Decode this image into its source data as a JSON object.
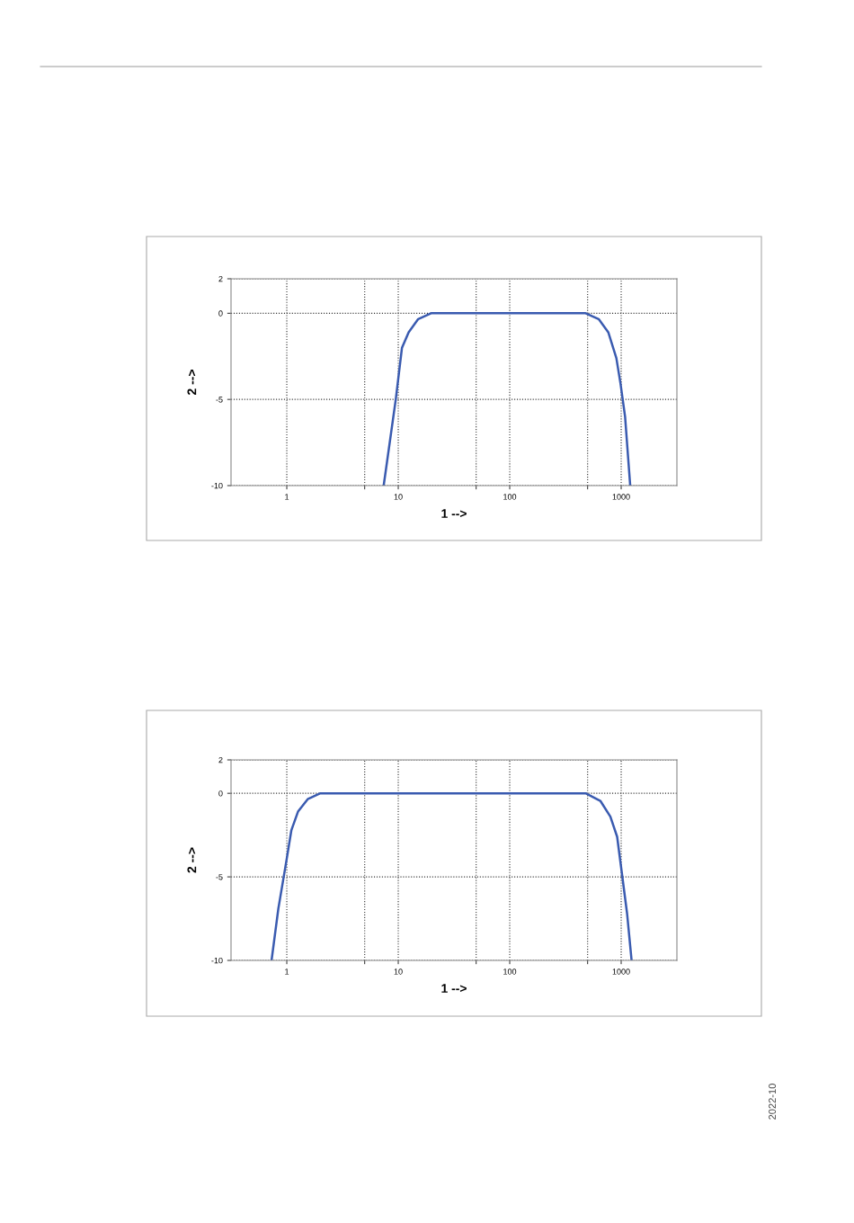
{
  "chart_data": [
    {
      "type": "line",
      "xlabel": "1 -->",
      "ylabel": "2 -->",
      "log": "x",
      "grid": true,
      "line_style": "solid",
      "marker": "none",
      "xlim": [
        0.316,
        3162
      ],
      "ylim": [
        -10,
        2
      ],
      "xticks": [
        1,
        {
          "value": 5,
          "label": null
        },
        10,
        {
          "value": 50,
          "label": null
        },
        100,
        {
          "value": 500,
          "label": null
        },
        1000
      ],
      "yticks": [
        -10,
        -5,
        0,
        2
      ],
      "series": [
        {
          "color": "#3a5bb0",
          "x": [
            7.4,
            9.5,
            10.8,
            12.4,
            15.1,
            19.7,
            100,
            480,
            628,
            766,
            905,
            987,
            1084,
            1205
          ],
          "values": [
            -10,
            -5,
            -2.0,
            -1.1,
            -0.34,
            0,
            0,
            0,
            -0.34,
            -1.1,
            -2.6,
            -4.1,
            -6,
            -10
          ]
        }
      ]
    },
    {
      "type": "line",
      "xlabel": "1 -->",
      "ylabel": "2 -->",
      "log": "x",
      "grid": true,
      "line_style": "solid",
      "marker": "none",
      "xlim": [
        0.316,
        3162
      ],
      "ylim": [
        -10,
        2
      ],
      "xticks": [
        1,
        {
          "value": 5,
          "label": null
        },
        10,
        {
          "value": 50,
          "label": null
        },
        100,
        {
          "value": 500,
          "label": null
        },
        1000
      ],
      "yticks": [
        -10,
        -5,
        0,
        2
      ],
      "annotations": [
        "2022-10"
      ],
      "series": [
        {
          "color": "#3a5bb0",
          "x": [
            0.73,
            0.84,
            1.0,
            1.1,
            1.26,
            1.54,
            2.0,
            20,
            480,
            650,
            800,
            920,
            1020,
            1130,
            1240
          ],
          "values": [
            -10,
            -6.9,
            -3.9,
            -2.2,
            -1.1,
            -0.35,
            0,
            0,
            0,
            -0.45,
            -1.4,
            -2.6,
            -4.9,
            -7.2,
            -10
          ]
        }
      ]
    }
  ]
}
